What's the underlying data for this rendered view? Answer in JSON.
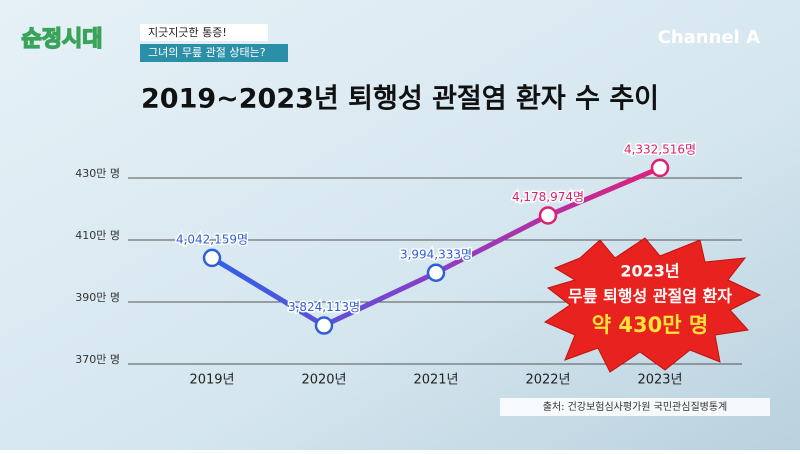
{
  "show_logo": "순정시대",
  "caption_1": "지긋지긋한 통증!",
  "caption_2": "그녀의 무릎 관절 상태는?",
  "channel": "Channel A",
  "chart_data": {
    "type": "line",
    "title": "2019~2023년 퇴행성 관절염 환자 수 추이",
    "categories": [
      "2019년",
      "2020년",
      "2021년",
      "2022년",
      "2023년"
    ],
    "values": [
      4042159,
      3824113,
      3994333,
      4178974,
      4332516
    ],
    "value_labels": [
      "4,042,159명",
      "3,824,113명",
      "3,994,333명",
      "4,178,974명",
      "4,332,516명"
    ],
    "value_label_colors": [
      "#2f5fd8",
      "#2f5fd8",
      "#2f5fd8",
      "#e0206e",
      "#e0206e"
    ],
    "line_gradient": [
      "#2f62e6",
      "#8a3ec8",
      "#e0207a"
    ],
    "ylim": [
      3700000,
      4400000
    ],
    "yticks": [
      {
        "value": 3700000,
        "label": "370만 명"
      },
      {
        "value": 3900000,
        "label": "390만 명"
      },
      {
        "value": 4100000,
        "label": "410만 명"
      },
      {
        "value": 4300000,
        "label": "430만 명"
      }
    ],
    "grid": true,
    "annotation": [
      "2023년",
      "무릎 퇴행성 관절염 환자",
      "약 430만 명"
    ],
    "source": "출처: 건강보험심사평가원 국민관심질병통계"
  }
}
